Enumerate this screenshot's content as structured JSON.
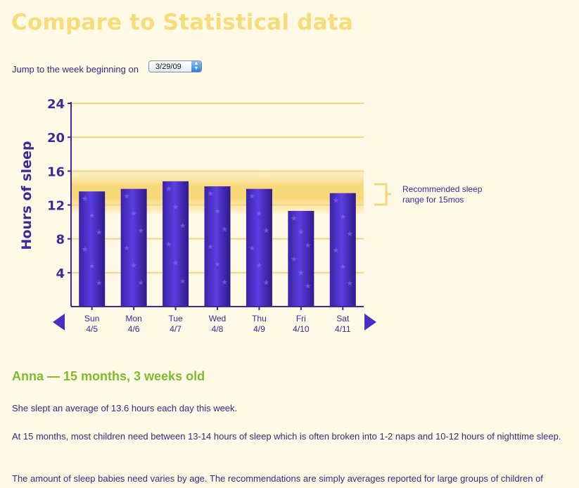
{
  "page": {
    "title": "Compare to Statistical data",
    "jump_label": "Jump to the week beginning on",
    "week_select_value": "3/29/09"
  },
  "chart_data": {
    "type": "bar",
    "ylabel": "Hours of sleep",
    "ylim": [
      0,
      24
    ],
    "yticks": [
      4,
      8,
      12,
      16,
      20,
      24
    ],
    "categories": [
      {
        "day": "Sun",
        "date": "4/5"
      },
      {
        "day": "Mon",
        "date": "4/6"
      },
      {
        "day": "Tue",
        "date": "4/7"
      },
      {
        "day": "Wed",
        "date": "4/8"
      },
      {
        "day": "Thu",
        "date": "4/9"
      },
      {
        "day": "Fri",
        "date": "4/10"
      },
      {
        "day": "Sat",
        "date": "4/11"
      }
    ],
    "values": [
      13.6,
      13.9,
      14.8,
      14.2,
      13.9,
      11.3,
      13.4
    ],
    "recommended_range": [
      13,
      14
    ],
    "legend": "Recommended sleep range for 15mos",
    "colors": {
      "bar": "#4a2fc4",
      "bar_dark": "#2e1a8a",
      "band": "#f8d97a",
      "grid": "#f3d67c",
      "axis": "#3a2a9a"
    }
  },
  "summary": {
    "child_heading": "Anna — 15 months, 3 weeks old",
    "para1": "She slept an average of 13.6 hours each day this week.",
    "para2": "At 15 months, most children need between 13-14 hours of sleep which is often broken into 1-2 naps and 10-12 hours of nighttime sleep.",
    "para3": "The amount of sleep babies need varies by age. The recommendations are simply averages reported for large groups of children of"
  }
}
